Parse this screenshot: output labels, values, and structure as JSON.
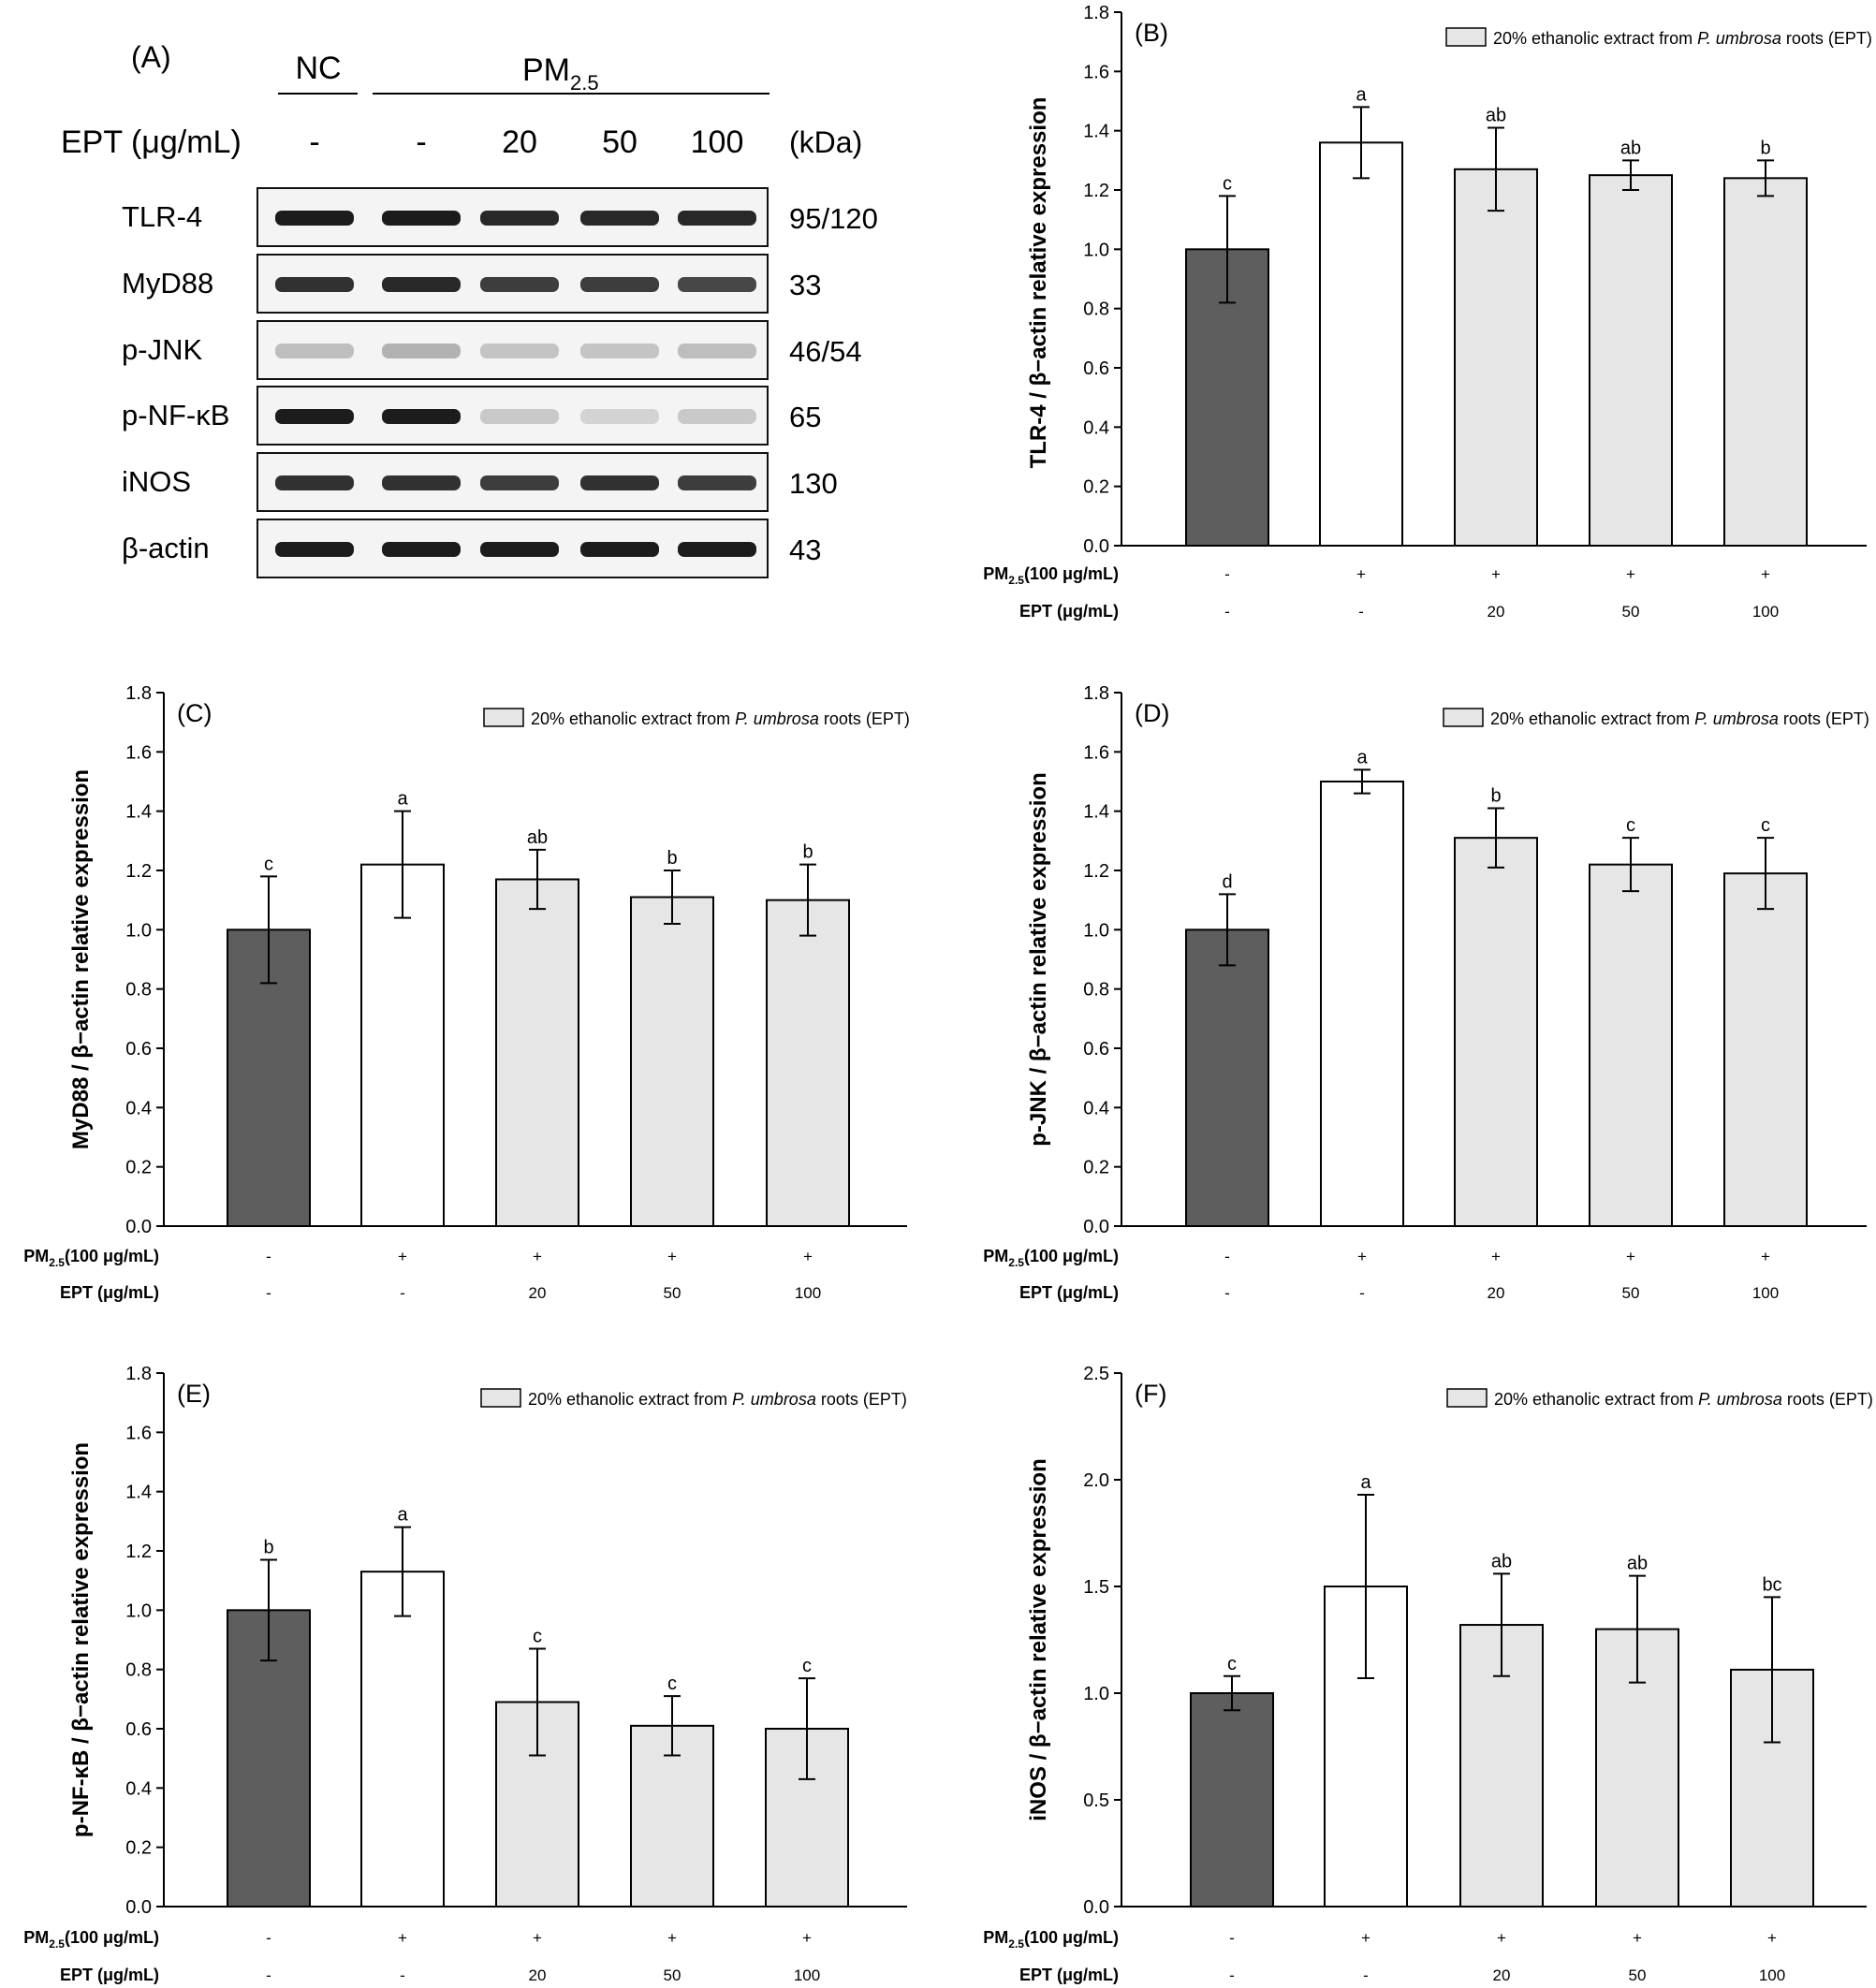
{
  "colors": {
    "nc": "#5e5e5e",
    "pm": "#ffffff",
    "ept": "#e6e6e6",
    "edge": "#000000",
    "band": "#1c1c1c"
  },
  "blot": {
    "label": "(A)",
    "group_nc": "NC",
    "group_pm": "PM",
    "group_pm_sub": "2.5",
    "ept_header": "EPT (μg/mL)",
    "lanes": [
      "-",
      "-",
      "20",
      "50",
      "100"
    ],
    "kda_header": "(kDa)",
    "rows": [
      {
        "name": "TLR-4",
        "kda": "95/120",
        "intensity": [
          1.0,
          1.0,
          0.95,
          0.95,
          0.95
        ]
      },
      {
        "name": "MyD88",
        "kda": "33",
        "intensity": [
          0.9,
          0.95,
          0.85,
          0.85,
          0.8
        ]
      },
      {
        "name": "p-JNK",
        "kda": "46/54",
        "intensity": [
          0.25,
          0.3,
          0.22,
          0.22,
          0.25
        ]
      },
      {
        "name": "p-NF-κB",
        "kda": "65",
        "intensity": [
          1.0,
          1.0,
          0.2,
          0.15,
          0.2
        ]
      },
      {
        "name": "iNOS",
        "kda": "130",
        "intensity": [
          0.9,
          0.9,
          0.85,
          0.9,
          0.85
        ]
      },
      {
        "name": "β-actin",
        "kda": "43",
        "intensity": [
          1.0,
          1.0,
          1.0,
          1.0,
          1.0
        ]
      }
    ]
  },
  "legend": {
    "prefix": "20% ethanolic extract from ",
    "italic": "P. umbrosa",
    "suffix": " roots (EPT)"
  },
  "row_labels": {
    "pm_main": "PM",
    "pm_sub": "2.5",
    "pm_tail": "(100 μg/mL)",
    "ept": "EPT (μg/mL)"
  },
  "chart_data": [
    {
      "panel": "(B)",
      "type": "bar",
      "ylabel": "TLR-4 / β−actin relative expression",
      "ylim": [
        0,
        1.8
      ],
      "yticks": [
        "0.0",
        "0.2",
        "0.4",
        "0.6",
        "0.8",
        "1.0",
        "1.2",
        "1.4",
        "1.6",
        "1.8"
      ],
      "pm_row": [
        "-",
        "+",
        "+",
        "+",
        "+"
      ],
      "ept_row": [
        "-",
        "-",
        "20",
        "50",
        "100"
      ],
      "values": [
        1.0,
        1.36,
        1.27,
        1.25,
        1.24
      ],
      "errors": [
        0.18,
        0.12,
        0.14,
        0.05,
        0.06
      ],
      "letters": [
        "c",
        "a",
        "ab",
        "ab",
        "b"
      ]
    },
    {
      "panel": "(C)",
      "type": "bar",
      "ylabel": "MyD88 / β−actin relative expression",
      "ylim": [
        0,
        1.8
      ],
      "yticks": [
        "0.0",
        "0.2",
        "0.4",
        "0.6",
        "0.8",
        "1.0",
        "1.2",
        "1.4",
        "1.6",
        "1.8"
      ],
      "pm_row": [
        "-",
        "+",
        "+",
        "+",
        "+"
      ],
      "ept_row": [
        "-",
        "-",
        "20",
        "50",
        "100"
      ],
      "values": [
        1.0,
        1.22,
        1.17,
        1.11,
        1.1
      ],
      "errors": [
        0.18,
        0.18,
        0.1,
        0.09,
        0.12
      ],
      "letters": [
        "c",
        "a",
        "ab",
        "b",
        "b"
      ]
    },
    {
      "panel": "(D)",
      "type": "bar",
      "ylabel": "p-JNK / β−actin relative expression",
      "ylim": [
        0,
        1.8
      ],
      "yticks": [
        "0.0",
        "0.2",
        "0.4",
        "0.6",
        "0.8",
        "1.0",
        "1.2",
        "1.4",
        "1.6",
        "1.8"
      ],
      "pm_row": [
        "-",
        "+",
        "+",
        "+",
        "+"
      ],
      "ept_row": [
        "-",
        "-",
        "20",
        "50",
        "100"
      ],
      "values": [
        1.0,
        1.5,
        1.31,
        1.22,
        1.19
      ],
      "errors": [
        0.12,
        0.04,
        0.1,
        0.09,
        0.12
      ],
      "letters": [
        "d",
        "a",
        "b",
        "c",
        "c"
      ]
    },
    {
      "panel": "(E)",
      "type": "bar",
      "ylabel": "p-NF-κB / β−actin relative expression",
      "ylim": [
        0,
        1.8
      ],
      "yticks": [
        "0.0",
        "0.2",
        "0.4",
        "0.6",
        "0.8",
        "1.0",
        "1.2",
        "1.4",
        "1.6",
        "1.8"
      ],
      "pm_row": [
        "-",
        "+",
        "+",
        "+",
        "+"
      ],
      "ept_row": [
        "-",
        "-",
        "20",
        "50",
        "100"
      ],
      "values": [
        1.0,
        1.13,
        0.69,
        0.61,
        0.6
      ],
      "errors": [
        0.17,
        0.15,
        0.18,
        0.1,
        0.17
      ],
      "letters": [
        "b",
        "a",
        "c",
        "c",
        "c"
      ]
    },
    {
      "panel": "(F)",
      "type": "bar",
      "ylabel": "iNOS / β−actin relative expression",
      "ylim": [
        0,
        2.5
      ],
      "yticks": [
        "0.0",
        "0.5",
        "1.0",
        "1.5",
        "2.0",
        "2.5"
      ],
      "pm_row": [
        "-",
        "+",
        "+",
        "+",
        "+"
      ],
      "ept_row": [
        "-",
        "-",
        "20",
        "50",
        "100"
      ],
      "values": [
        1.0,
        1.5,
        1.32,
        1.3,
        1.11
      ],
      "errors": [
        0.08,
        0.43,
        0.24,
        0.25,
        0.34
      ],
      "letters": [
        "c",
        "a",
        "ab",
        "ab",
        "bc"
      ]
    }
  ]
}
